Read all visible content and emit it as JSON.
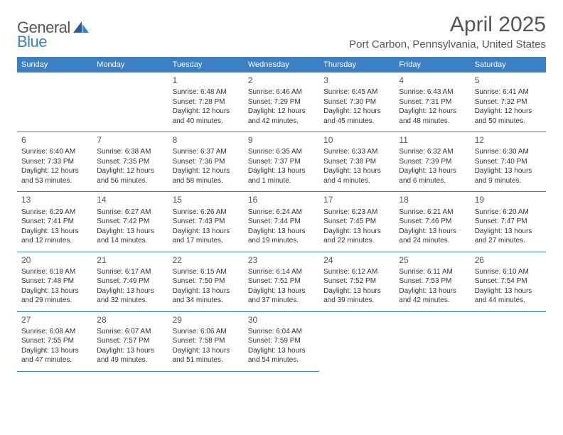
{
  "logo": {
    "line1": "General",
    "line2": "Blue"
  },
  "title": "April 2025",
  "location": "Port Carbon, Pennsylvania, United States",
  "colors": {
    "header_bg": "#3b7fc4",
    "header_text": "#ffffff",
    "border": "#3b7fc4",
    "text": "#333333",
    "title_text": "#555555"
  },
  "dayHeaders": [
    "Sunday",
    "Monday",
    "Tuesday",
    "Wednesday",
    "Thursday",
    "Friday",
    "Saturday"
  ],
  "weeks": [
    [
      null,
      null,
      {
        "n": "1",
        "sr": "Sunrise: 6:48 AM",
        "ss": "Sunset: 7:28 PM",
        "dl": "Daylight: 12 hours and 40 minutes."
      },
      {
        "n": "2",
        "sr": "Sunrise: 6:46 AM",
        "ss": "Sunset: 7:29 PM",
        "dl": "Daylight: 12 hours and 42 minutes."
      },
      {
        "n": "3",
        "sr": "Sunrise: 6:45 AM",
        "ss": "Sunset: 7:30 PM",
        "dl": "Daylight: 12 hours and 45 minutes."
      },
      {
        "n": "4",
        "sr": "Sunrise: 6:43 AM",
        "ss": "Sunset: 7:31 PM",
        "dl": "Daylight: 12 hours and 48 minutes."
      },
      {
        "n": "5",
        "sr": "Sunrise: 6:41 AM",
        "ss": "Sunset: 7:32 PM",
        "dl": "Daylight: 12 hours and 50 minutes."
      }
    ],
    [
      {
        "n": "6",
        "sr": "Sunrise: 6:40 AM",
        "ss": "Sunset: 7:33 PM",
        "dl": "Daylight: 12 hours and 53 minutes."
      },
      {
        "n": "7",
        "sr": "Sunrise: 6:38 AM",
        "ss": "Sunset: 7:35 PM",
        "dl": "Daylight: 12 hours and 56 minutes."
      },
      {
        "n": "8",
        "sr": "Sunrise: 6:37 AM",
        "ss": "Sunset: 7:36 PM",
        "dl": "Daylight: 12 hours and 58 minutes."
      },
      {
        "n": "9",
        "sr": "Sunrise: 6:35 AM",
        "ss": "Sunset: 7:37 PM",
        "dl": "Daylight: 13 hours and 1 minute."
      },
      {
        "n": "10",
        "sr": "Sunrise: 6:33 AM",
        "ss": "Sunset: 7:38 PM",
        "dl": "Daylight: 13 hours and 4 minutes."
      },
      {
        "n": "11",
        "sr": "Sunrise: 6:32 AM",
        "ss": "Sunset: 7:39 PM",
        "dl": "Daylight: 13 hours and 6 minutes."
      },
      {
        "n": "12",
        "sr": "Sunrise: 6:30 AM",
        "ss": "Sunset: 7:40 PM",
        "dl": "Daylight: 13 hours and 9 minutes."
      }
    ],
    [
      {
        "n": "13",
        "sr": "Sunrise: 6:29 AM",
        "ss": "Sunset: 7:41 PM",
        "dl": "Daylight: 13 hours and 12 minutes."
      },
      {
        "n": "14",
        "sr": "Sunrise: 6:27 AM",
        "ss": "Sunset: 7:42 PM",
        "dl": "Daylight: 13 hours and 14 minutes."
      },
      {
        "n": "15",
        "sr": "Sunrise: 6:26 AM",
        "ss": "Sunset: 7:43 PM",
        "dl": "Daylight: 13 hours and 17 minutes."
      },
      {
        "n": "16",
        "sr": "Sunrise: 6:24 AM",
        "ss": "Sunset: 7:44 PM",
        "dl": "Daylight: 13 hours and 19 minutes."
      },
      {
        "n": "17",
        "sr": "Sunrise: 6:23 AM",
        "ss": "Sunset: 7:45 PM",
        "dl": "Daylight: 13 hours and 22 minutes."
      },
      {
        "n": "18",
        "sr": "Sunrise: 6:21 AM",
        "ss": "Sunset: 7:46 PM",
        "dl": "Daylight: 13 hours and 24 minutes."
      },
      {
        "n": "19",
        "sr": "Sunrise: 6:20 AM",
        "ss": "Sunset: 7:47 PM",
        "dl": "Daylight: 13 hours and 27 minutes."
      }
    ],
    [
      {
        "n": "20",
        "sr": "Sunrise: 6:18 AM",
        "ss": "Sunset: 7:48 PM",
        "dl": "Daylight: 13 hours and 29 minutes."
      },
      {
        "n": "21",
        "sr": "Sunrise: 6:17 AM",
        "ss": "Sunset: 7:49 PM",
        "dl": "Daylight: 13 hours and 32 minutes."
      },
      {
        "n": "22",
        "sr": "Sunrise: 6:15 AM",
        "ss": "Sunset: 7:50 PM",
        "dl": "Daylight: 13 hours and 34 minutes."
      },
      {
        "n": "23",
        "sr": "Sunrise: 6:14 AM",
        "ss": "Sunset: 7:51 PM",
        "dl": "Daylight: 13 hours and 37 minutes."
      },
      {
        "n": "24",
        "sr": "Sunrise: 6:12 AM",
        "ss": "Sunset: 7:52 PM",
        "dl": "Daylight: 13 hours and 39 minutes."
      },
      {
        "n": "25",
        "sr": "Sunrise: 6:11 AM",
        "ss": "Sunset: 7:53 PM",
        "dl": "Daylight: 13 hours and 42 minutes."
      },
      {
        "n": "26",
        "sr": "Sunrise: 6:10 AM",
        "ss": "Sunset: 7:54 PM",
        "dl": "Daylight: 13 hours and 44 minutes."
      }
    ],
    [
      {
        "n": "27",
        "sr": "Sunrise: 6:08 AM",
        "ss": "Sunset: 7:55 PM",
        "dl": "Daylight: 13 hours and 47 minutes."
      },
      {
        "n": "28",
        "sr": "Sunrise: 6:07 AM",
        "ss": "Sunset: 7:57 PM",
        "dl": "Daylight: 13 hours and 49 minutes."
      },
      {
        "n": "29",
        "sr": "Sunrise: 6:06 AM",
        "ss": "Sunset: 7:58 PM",
        "dl": "Daylight: 13 hours and 51 minutes."
      },
      {
        "n": "30",
        "sr": "Sunrise: 6:04 AM",
        "ss": "Sunset: 7:59 PM",
        "dl": "Daylight: 13 hours and 54 minutes."
      },
      null,
      null,
      null
    ]
  ]
}
